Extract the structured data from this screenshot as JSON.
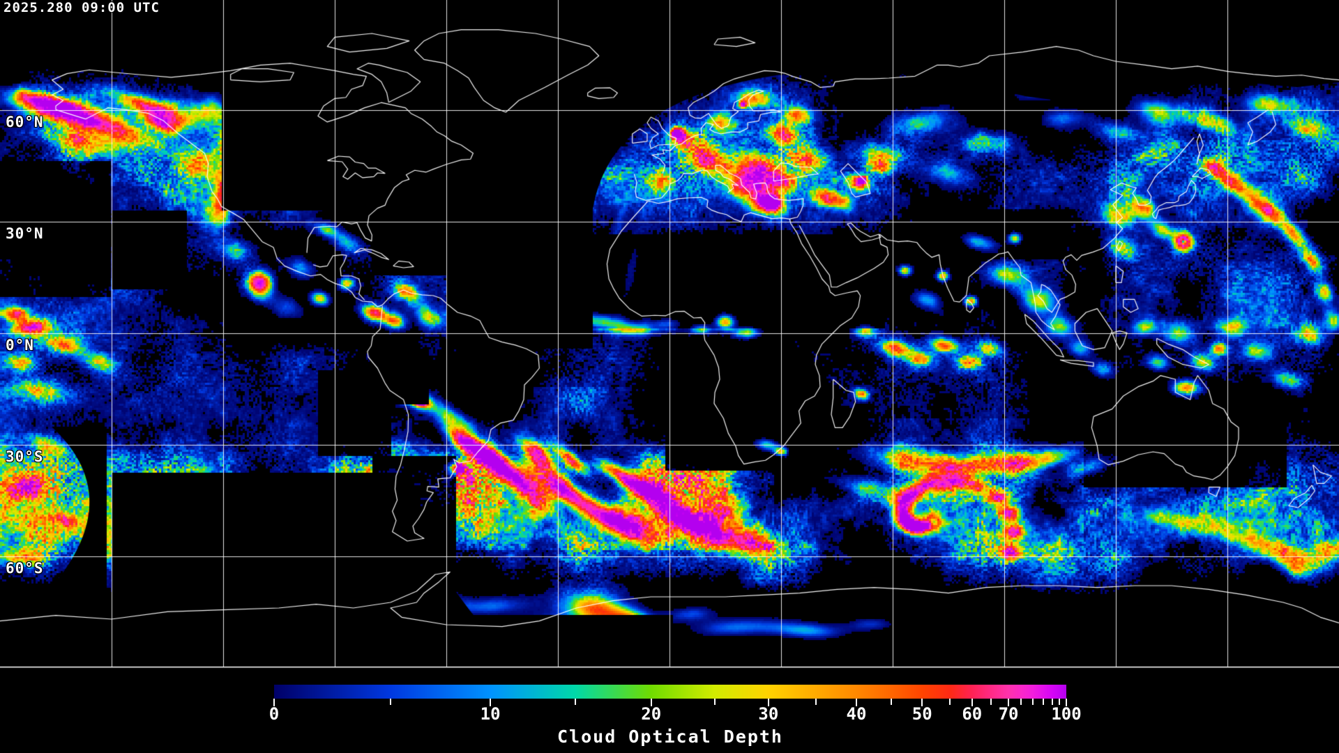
{
  "header": {
    "timestamp": "2025.280 09:00 UTC"
  },
  "map": {
    "projection": "equirectangular",
    "lon_range_deg": [
      -180,
      180
    ],
    "lat_range_deg": [
      -90,
      90
    ],
    "grid": {
      "lat_step_deg": 30,
      "lon_step_deg": 30,
      "color": "#ffffff"
    },
    "lat_labels": [
      {
        "text": "60°N",
        "lat": 60
      },
      {
        "text": "30°N",
        "lat": 30
      },
      {
        "text": "0°N",
        "lat": 0
      },
      {
        "text": "30°S",
        "lat": -30
      },
      {
        "text": "60°S",
        "lat": -60
      }
    ],
    "background_color": "#000000",
    "coastline_color": "#ffffff"
  },
  "colorbar": {
    "title": "Cloud Optical Depth",
    "min": 0,
    "max": 100,
    "major_ticks": [
      {
        "label": "0",
        "value": 0
      },
      {
        "label": "10",
        "value": 10
      },
      {
        "label": "20",
        "value": 20
      },
      {
        "label": "30",
        "value": 30
      },
      {
        "label": "40",
        "value": 40
      },
      {
        "label": "50",
        "value": 50
      },
      {
        "label": "60",
        "value": 60
      },
      {
        "label": "70",
        "value": 70
      },
      {
        "label": "100",
        "value": 100
      }
    ],
    "minor_tick_values": [
      5,
      15,
      25,
      35,
      45,
      55,
      65,
      75,
      80,
      85,
      90,
      95
    ],
    "scale": [
      [
        0,
        0
      ],
      [
        5,
        0.147
      ],
      [
        10,
        0.273
      ],
      [
        15,
        0.38
      ],
      [
        20,
        0.476
      ],
      [
        25,
        0.556
      ],
      [
        30,
        0.624
      ],
      [
        35,
        0.684
      ],
      [
        40,
        0.735
      ],
      [
        45,
        0.779
      ],
      [
        50,
        0.818
      ],
      [
        55,
        0.853
      ],
      [
        60,
        0.881
      ],
      [
        65,
        0.905
      ],
      [
        70,
        0.927
      ],
      [
        75,
        0.943
      ],
      [
        80,
        0.958
      ],
      [
        85,
        0.971
      ],
      [
        90,
        0.982
      ],
      [
        95,
        0.991
      ],
      [
        100,
        1.0
      ]
    ],
    "stops": [
      {
        "value": 0,
        "color": "#000068"
      },
      {
        "value": 5,
        "color": "#0038e0"
      },
      {
        "value": 10,
        "color": "#0092ff"
      },
      {
        "value": 15,
        "color": "#00d8a8"
      },
      {
        "value": 20,
        "color": "#70dc00"
      },
      {
        "value": 25,
        "color": "#d2ec00"
      },
      {
        "value": 30,
        "color": "#ffd200"
      },
      {
        "value": 35,
        "color": "#ffaa00"
      },
      {
        "value": 40,
        "color": "#ff8800"
      },
      {
        "value": 45,
        "color": "#ff6600"
      },
      {
        "value": 50,
        "color": "#ff4400"
      },
      {
        "value": 55,
        "color": "#ff2a14"
      },
      {
        "value": 60,
        "color": "#ff2254"
      },
      {
        "value": 65,
        "color": "#ff2a85"
      },
      {
        "value": 70,
        "color": "#ff32ac"
      },
      {
        "value": 75,
        "color": "#fb28c8"
      },
      {
        "value": 80,
        "color": "#f11ddd"
      },
      {
        "value": 85,
        "color": "#e310ec"
      },
      {
        "value": 90,
        "color": "#d605f6"
      },
      {
        "value": 95,
        "color": "#c703f4"
      },
      {
        "value": 100,
        "color": "#b400ef"
      }
    ]
  }
}
